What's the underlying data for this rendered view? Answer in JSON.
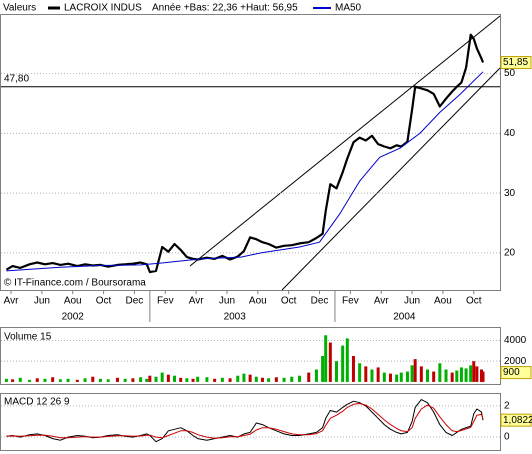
{
  "chart_data": [
    {
      "type": "line",
      "legend_title": "Valeurs",
      "annotation": "Année +Bas: 22,36 +Haut: 56,95",
      "source": "© IT-Finance.com / Boursorama",
      "xlim": [
        -0.65,
        31.7
      ],
      "xticks": [
        {
          "value": 0,
          "label": "Avr"
        },
        {
          "value": 2,
          "label": "Jun"
        },
        {
          "value": 4,
          "label": "Aou"
        },
        {
          "value": 6,
          "label": "Oct"
        },
        {
          "value": 8,
          "label": "Dec"
        },
        {
          "value": 10,
          "label": "Fev"
        },
        {
          "value": 12,
          "label": "Avr"
        },
        {
          "value": 14,
          "label": "Jun"
        },
        {
          "value": 16,
          "label": "Aou"
        },
        {
          "value": 18,
          "label": "Oct"
        },
        {
          "value": 20,
          "label": "Dec"
        },
        {
          "value": 22,
          "label": "Fev"
        },
        {
          "value": 24,
          "label": "Avr"
        },
        {
          "value": 26,
          "label": "Jun"
        },
        {
          "value": 28,
          "label": "Aou"
        },
        {
          "value": 30,
          "label": "Oct"
        }
      ],
      "year_labels": [
        {
          "value": 4,
          "label": "2002"
        },
        {
          "value": 14.5,
          "label": "2003"
        },
        {
          "value": 25.5,
          "label": "2004"
        }
      ],
      "year_boundaries": [
        9,
        21
      ],
      "ylim": [
        13.8,
        59.8
      ],
      "yticks": [
        20,
        30,
        40,
        50
      ],
      "grid": true,
      "hline": {
        "value": 47.8,
        "label": "47,80"
      },
      "last_value": {
        "value": 51.85,
        "label": "51,85"
      },
      "series": [
        {
          "name": "LACROIX INDUS",
          "color": "#000000",
          "x": [
            -0.3,
            0.1,
            0.6,
            1.2,
            1.7,
            2.2,
            2.7,
            3.2,
            3.7,
            4.3,
            4.8,
            5.3,
            5.8,
            6.3,
            6.9,
            7.4,
            7.9,
            8.4,
            8.8,
            9.0,
            9.4,
            9.8,
            10.2,
            10.6,
            11.0,
            11.4,
            11.8,
            12.1,
            12.7,
            13.2,
            13.7,
            14.2,
            14.7,
            15.1,
            15.5,
            15.9,
            16.3,
            16.7,
            17.2,
            17.7,
            18.2,
            18.7,
            19.3,
            19.8,
            20.2,
            20.4,
            20.7,
            21.1,
            21.5,
            21.8,
            22.2,
            22.6,
            23.0,
            23.4,
            23.8,
            24.2,
            24.6,
            25.0,
            25.3,
            25.7,
            26.0,
            26.2,
            26.6,
            27.0,
            27.4,
            27.8,
            28.2,
            28.6,
            28.9,
            29.2,
            29.5,
            29.8,
            30.0,
            30.2,
            30.5,
            30.6
          ],
          "values": [
            17.2,
            17.8,
            17.5,
            18.1,
            18.4,
            18.1,
            18.3,
            18.0,
            18.2,
            17.8,
            18.1,
            17.9,
            18.0,
            17.7,
            18.0,
            18.1,
            18.2,
            18.4,
            18.1,
            16.8,
            17.0,
            21.0,
            20.2,
            21.5,
            20.5,
            19.3,
            19.0,
            18.9,
            19.2,
            19.0,
            19.5,
            18.9,
            19.4,
            20.3,
            22.6,
            22.3,
            21.8,
            21.5,
            20.9,
            21.2,
            21.3,
            21.6,
            21.8,
            22.5,
            23.2,
            27.0,
            31.5,
            30.8,
            33.5,
            35.8,
            38.5,
            39.3,
            38.8,
            39.6,
            38.2,
            37.8,
            37.5,
            38.0,
            37.8,
            38.6,
            44.0,
            47.8,
            47.5,
            47.2,
            46.6,
            44.5,
            45.8,
            47.0,
            47.8,
            48.5,
            51.0,
            56.5,
            55.8,
            54.2,
            52.5,
            51.85
          ]
        },
        {
          "name": "MA50",
          "color": "#0000cc",
          "x": [
            -0.3,
            3.2,
            5.8,
            8.4,
            9.7,
            12.3,
            14.9,
            16.2,
            18.7,
            20.0,
            21.3,
            22.6,
            23.9,
            25.2,
            26.5,
            27.8,
            29.1,
            30.6
          ],
          "values": [
            17.0,
            17.6,
            17.9,
            18.0,
            18.3,
            19.0,
            19.3,
            20.0,
            21.0,
            21.8,
            26.5,
            32.0,
            36.0,
            37.5,
            40.0,
            43.5,
            46.5,
            50.3
          ]
        }
      ]
    },
    {
      "type": "bar",
      "title": "Volume 15",
      "xlim": [
        -0.65,
        31.7
      ],
      "ylim": [
        -200,
        5200
      ],
      "yticks": [
        2000,
        4000
      ],
      "grid": true,
      "last_value": 900,
      "x": [
        -0.3,
        0.1,
        0.6,
        1.2,
        1.7,
        2.2,
        2.7,
        3.2,
        3.7,
        4.3,
        4.8,
        5.3,
        5.8,
        6.3,
        6.9,
        7.4,
        7.9,
        8.4,
        8.8,
        9.0,
        9.4,
        9.8,
        10.2,
        10.6,
        11.0,
        11.4,
        11.8,
        12.1,
        12.7,
        13.2,
        13.7,
        14.2,
        14.7,
        15.1,
        15.5,
        15.9,
        16.3,
        16.7,
        17.2,
        17.7,
        18.2,
        18.7,
        19.3,
        19.8,
        20.2,
        20.4,
        20.7,
        21.1,
        21.5,
        21.8,
        22.2,
        22.6,
        23.0,
        23.4,
        23.8,
        24.2,
        24.6,
        25.0,
        25.3,
        25.7,
        26.0,
        26.2,
        26.6,
        27.0,
        27.4,
        27.8,
        28.2,
        28.6,
        28.9,
        29.2,
        29.5,
        29.8,
        30.0,
        30.2,
        30.5,
        30.6
      ],
      "values": [
        300,
        250,
        400,
        200,
        350,
        300,
        450,
        250,
        300,
        200,
        350,
        500,
        300,
        250,
        400,
        300,
        350,
        450,
        300,
        600,
        500,
        900,
        700,
        600,
        400,
        350,
        300,
        500,
        450,
        300,
        400,
        350,
        600,
        800,
        700,
        500,
        400,
        350,
        450,
        400,
        500,
        600,
        900,
        1200,
        2500,
        4500,
        3800,
        2000,
        3500,
        4200,
        2500,
        1800,
        1500,
        1200,
        1400,
        900,
        800,
        700,
        900,
        1000,
        1600,
        2200,
        1500,
        1200,
        1000,
        1800,
        1200,
        900,
        1100,
        1400,
        1300,
        1600,
        2000,
        1500,
        1200,
        1000
      ],
      "colors": [
        "#00b000",
        "#c00000",
        "#00b000",
        "#00b000",
        "#c00000",
        "#00b000",
        "#c00000",
        "#00b000",
        "#00b000",
        "#c00000",
        "#00b000",
        "#c00000",
        "#00b000",
        "#00b000",
        "#c00000",
        "#00b000",
        "#c00000",
        "#00b000",
        "#00b000",
        "#c00000",
        "#00b000",
        "#00b000",
        "#c00000",
        "#00b000",
        "#c00000",
        "#00b000",
        "#c00000",
        "#00b000",
        "#00b000",
        "#c00000",
        "#00b000",
        "#c00000",
        "#00b000",
        "#00b000",
        "#c00000",
        "#00b000",
        "#c00000",
        "#00b000",
        "#c00000",
        "#00b000",
        "#00b000",
        "#00b000",
        "#c00000",
        "#00b000",
        "#00b000",
        "#00b000",
        "#c00000",
        "#00b000",
        "#00b000",
        "#00b000",
        "#c00000",
        "#00b000",
        "#c00000",
        "#00b000",
        "#c00000",
        "#00b000",
        "#c00000",
        "#00b000",
        "#00b000",
        "#00b000",
        "#00b000",
        "#c00000",
        "#c00000",
        "#00b000",
        "#c00000",
        "#00b000",
        "#00b000",
        "#c00000",
        "#00b000",
        "#00b000",
        "#00b000",
        "#00b000",
        "#c00000",
        "#c00000",
        "#c00000",
        "#c00000"
      ]
    },
    {
      "type": "line",
      "title": "MACD 12 26 9",
      "xlim": [
        -0.65,
        31.7
      ],
      "ylim": [
        -0.83,
        2.76
      ],
      "yticks": [
        0,
        2
      ],
      "grid": true,
      "last_value": {
        "value": 1.0822,
        "label": "1,0822"
      },
      "series": [
        {
          "color": "#000000",
          "x": [
            -0.3,
            0.1,
            0.6,
            1.2,
            1.7,
            2.2,
            2.7,
            3.2,
            3.7,
            4.3,
            4.8,
            5.3,
            5.8,
            6.3,
            6.9,
            7.4,
            7.9,
            8.4,
            8.8,
            9.0,
            9.4,
            9.8,
            10.2,
            10.6,
            11.0,
            11.4,
            11.8,
            12.1,
            12.7,
            13.2,
            13.7,
            14.2,
            14.7,
            15.1,
            15.5,
            15.9,
            16.3,
            16.7,
            17.2,
            17.7,
            18.2,
            18.7,
            19.3,
            19.8,
            20.2,
            20.4,
            20.7,
            21.1,
            21.5,
            21.8,
            22.2,
            22.6,
            23.0,
            23.4,
            23.8,
            24.2,
            24.6,
            25.0,
            25.3,
            25.7,
            26.0,
            26.2,
            26.6,
            27.0,
            27.4,
            27.8,
            28.2,
            28.6,
            28.9,
            29.2,
            29.5,
            29.8,
            30.0,
            30.2,
            30.5,
            30.6
          ],
          "values": [
            0.05,
            0.1,
            0.0,
            0.15,
            0.2,
            0.1,
            -0.1,
            -0.2,
            0.0,
            0.1,
            0.05,
            -0.05,
            0.0,
            0.1,
            0.15,
            0.05,
            0.0,
            0.1,
            0.2,
            0.1,
            -0.3,
            -0.1,
            0.4,
            0.5,
            0.6,
            0.4,
            0.1,
            -0.1,
            -0.2,
            -0.1,
            0.0,
            0.1,
            0.0,
            0.2,
            0.3,
            0.9,
            0.8,
            0.6,
            0.4,
            0.2,
            0.1,
            0.1,
            0.2,
            0.3,
            0.6,
            1.2,
            1.7,
            1.6,
            1.9,
            2.1,
            2.3,
            2.2,
            2.0,
            1.6,
            1.2,
            0.8,
            0.5,
            0.3,
            0.2,
            0.3,
            1.0,
            1.9,
            2.4,
            2.2,
            1.6,
            0.8,
            0.3,
            0.1,
            0.3,
            0.5,
            0.6,
            0.7,
            1.5,
            1.8,
            1.6,
            1.0822
          ]
        },
        {
          "color": "#cc0000",
          "x": [
            -0.3,
            0.1,
            0.6,
            1.2,
            1.7,
            2.2,
            2.7,
            3.2,
            3.7,
            4.3,
            4.8,
            5.3,
            5.8,
            6.3,
            6.9,
            7.4,
            7.9,
            8.4,
            8.8,
            9.0,
            9.4,
            9.8,
            10.2,
            10.6,
            11.0,
            11.4,
            11.8,
            12.1,
            12.7,
            13.2,
            13.7,
            14.2,
            14.7,
            15.1,
            15.5,
            15.9,
            16.3,
            16.7,
            17.2,
            17.7,
            18.2,
            18.7,
            19.3,
            19.8,
            20.2,
            20.4,
            20.7,
            21.1,
            21.5,
            21.8,
            22.2,
            22.6,
            23.0,
            23.4,
            23.8,
            24.2,
            24.6,
            25.0,
            25.3,
            25.7,
            26.0,
            26.2,
            26.6,
            27.0,
            27.4,
            27.8,
            28.2,
            28.6,
            28.9,
            29.2,
            29.5,
            29.8,
            30.0,
            30.2,
            30.5,
            30.6
          ],
          "values": [
            0.05,
            0.07,
            0.05,
            0.08,
            0.12,
            0.12,
            0.05,
            -0.05,
            -0.05,
            0.0,
            0.03,
            0.0,
            0.0,
            0.04,
            0.08,
            0.08,
            0.05,
            0.07,
            0.12,
            0.12,
            0.0,
            -0.05,
            0.1,
            0.25,
            0.4,
            0.4,
            0.3,
            0.15,
            0.0,
            -0.08,
            -0.05,
            0.02,
            0.02,
            0.1,
            0.18,
            0.45,
            0.6,
            0.6,
            0.5,
            0.35,
            0.2,
            0.15,
            0.15,
            0.22,
            0.4,
            0.75,
            1.2,
            1.4,
            1.65,
            1.9,
            2.1,
            2.15,
            2.05,
            1.8,
            1.45,
            1.1,
            0.8,
            0.55,
            0.4,
            0.35,
            0.6,
            1.2,
            1.8,
            2.05,
            1.85,
            1.3,
            0.8,
            0.4,
            0.35,
            0.42,
            0.52,
            0.62,
            1.0,
            1.4,
            1.45,
            1.15
          ]
        }
      ]
    }
  ]
}
